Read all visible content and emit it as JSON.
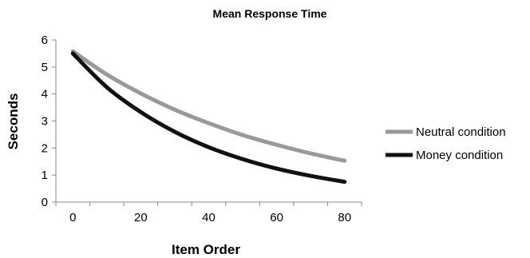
{
  "chart_data": {
    "type": "line",
    "title": "Mean Response Time",
    "xlabel": "Item Order",
    "ylabel": "Seconds",
    "xlim": [
      -5,
      85
    ],
    "ylim": [
      0,
      6
    ],
    "x_ticks": [
      "0",
      "20",
      "40",
      "60",
      "80"
    ],
    "y_ticks": [
      "0",
      "1",
      "2",
      "3",
      "4",
      "5",
      "6"
    ],
    "grid": false,
    "legend_position": "right",
    "x": [
      0,
      10,
      20,
      30,
      40,
      50,
      60,
      70,
      80
    ],
    "series": [
      {
        "name": "Neutral condition",
        "color": "#999999",
        "values": [
          5.58,
          4.72,
          4.02,
          3.42,
          2.92,
          2.48,
          2.12,
          1.8,
          1.53
        ]
      },
      {
        "name": "Money condition",
        "color": "#111111",
        "values": [
          5.5,
          4.25,
          3.33,
          2.6,
          2.03,
          1.59,
          1.24,
          0.97,
          0.75
        ]
      }
    ]
  }
}
